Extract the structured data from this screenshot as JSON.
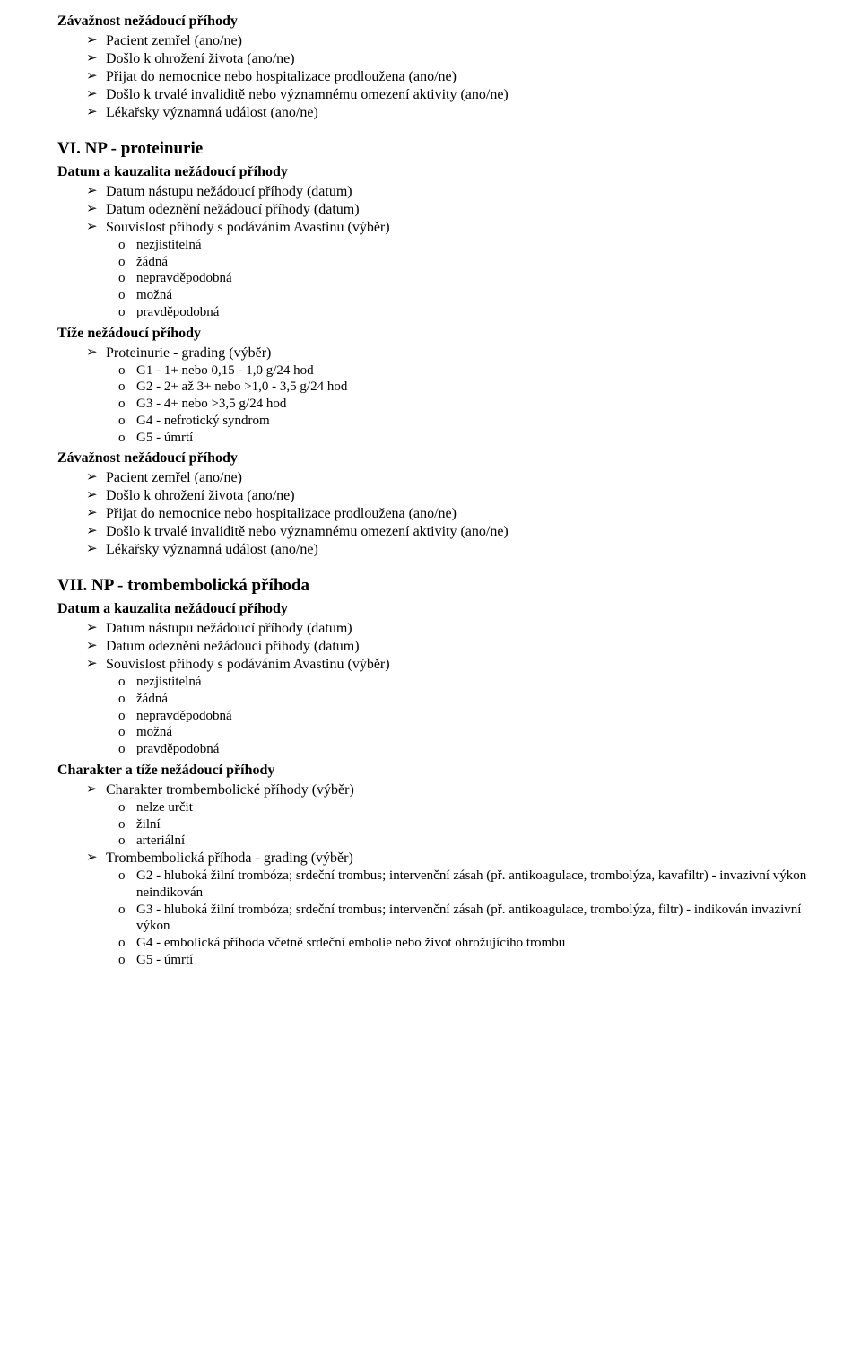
{
  "pre": {
    "zavTitle": "Závažnost nežádoucí příhody",
    "zavItems": [
      "Pacient zemřel (ano/ne)",
      "Došlo k ohrožení života (ano/ne)",
      "Přijat do nemocnice nebo hospitalizace prodloužena (ano/ne)",
      "Došlo k trvalé invaliditě nebo významnému omezení aktivity (ano/ne)",
      "Lékařsky významná událost (ano/ne)"
    ]
  },
  "vi": {
    "title": "VI. NP - proteinurie",
    "datumTitle": "Datum a kauzalita nežádoucí příhody",
    "datumItems": [
      "Datum nástupu nežádoucí příhody (datum)",
      "Datum odeznění nežádoucí příhody (datum)",
      "Souvislost příhody s podáváním Avastinu (výběr)"
    ],
    "souvOptions": [
      "nezjistitelná",
      "žádná",
      "nepravděpodobná",
      "možná",
      "pravděpodobná"
    ],
    "tizeTitle": "Tíže nežádoucí příhody",
    "tizeItem": "Proteinurie - grading (výběr)",
    "tizeOptions": [
      "G1 - 1+ nebo 0,15 - 1,0 g/24 hod",
      "G2 - 2+ až 3+ nebo >1,0 - 3,5 g/24 hod",
      "G3 - 4+ nebo >3,5 g/24 hod",
      "G4 - nefrotický syndrom",
      "G5 - úmrtí"
    ],
    "zavTitle": "Závažnost nežádoucí příhody",
    "zavItems": [
      "Pacient zemřel (ano/ne)",
      "Došlo k ohrožení života (ano/ne)",
      "Přijat do nemocnice nebo hospitalizace prodloužena (ano/ne)",
      "Došlo k trvalé invaliditě nebo významnému omezení aktivity (ano/ne)",
      "Lékařsky významná událost (ano/ne)"
    ]
  },
  "vii": {
    "title": "VII. NP - trombembolická příhoda",
    "datumTitle": "Datum a kauzalita nežádoucí příhody",
    "datumItems": [
      "Datum nástupu nežádoucí příhody (datum)",
      "Datum odeznění nežádoucí příhody (datum)",
      "Souvislost příhody s podáváním Avastinu (výběr)"
    ],
    "souvOptions": [
      "nezjistitelná",
      "žádná",
      "nepravděpodobná",
      "možná",
      "pravděpodobná"
    ],
    "charTitle": "Charakter a tíže nežádoucí příhody",
    "charItem": "Charakter trombembolické příhody (výběr)",
    "charOptions": [
      "nelze určit",
      "žilní",
      "arteriální"
    ],
    "gradItem": "Trombembolická příhoda - grading (výběr)",
    "gradOptions": [
      "G2 - hluboká žilní trombóza; srdeční trombus; intervenční zásah (př. antikoagulace, trombolýza, kavafiltr) - invazivní výkon neindikován",
      "G3 - hluboká žilní trombóza; srdeční trombus; intervenční zásah (př. antikoagulace, trombolýza, filtr) - indikován invazivní výkon",
      "G4 - embolická příhoda včetně srdeční embolie nebo život ohrožujícího trombu",
      "G5 - úmrtí"
    ]
  }
}
